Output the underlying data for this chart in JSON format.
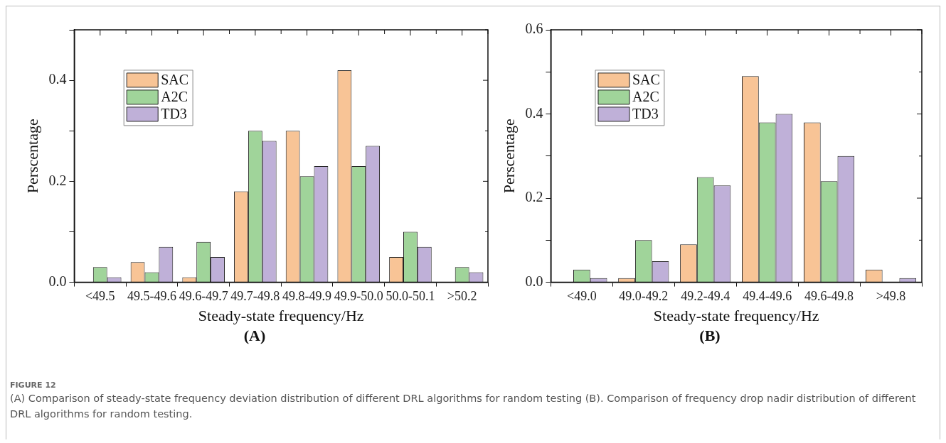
{
  "chart_data": [
    {
      "type": "bar",
      "title": "(A)",
      "xlabel": "Steady-state frequency/Hz",
      "ylabel": "Perscentage",
      "categories": [
        "<49.5",
        "49.5-49.6",
        "49.6-49.7",
        "49.7-49.8",
        "49.8-49.9",
        "49.9-50.0",
        "50.0-50.1",
        ">50.2"
      ],
      "series": [
        {
          "name": "SAC",
          "color": "#f8c496",
          "values": [
            0,
            0.04,
            0.01,
            0.18,
            0.3,
            0.42,
            0.05,
            0
          ]
        },
        {
          "name": "A2C",
          "color": "#a0d49a",
          "values": [
            0.03,
            0.02,
            0.08,
            0.3,
            0.21,
            0.23,
            0.1,
            0.03
          ]
        },
        {
          "name": "TD3",
          "color": "#bfb0d8",
          "values": [
            0.01,
            0.07,
            0.05,
            0.28,
            0.23,
            0.27,
            0.07,
            0.02
          ]
        }
      ],
      "ylim": [
        0,
        0.5
      ],
      "yticks": [
        {
          "value": 0,
          "label": "0.0"
        },
        {
          "value": 0.1,
          "label": null
        },
        {
          "value": 0.2,
          "label": "0.2"
        },
        {
          "value": 0.3,
          "label": null
        },
        {
          "value": 0.4,
          "label": "0.4"
        },
        {
          "value": 0.5,
          "label": null
        }
      ],
      "grid": false,
      "legend": "top left",
      "annotations": [
        "FIGURE 12",
        "(A) Comparison of steady-state frequency deviation distribution of different DRL algorithms for random testing (B). Comparison of frequency drop nadir distribution of different DRL algorithms for random testing."
      ]
    },
    {
      "type": "bar",
      "title": "(B)",
      "xlabel": "Steady-state frequency/Hz",
      "ylabel": "Perscentage",
      "categories": [
        "<49.0",
        "49.0-49.2",
        "49.2-49.4",
        "49.4-49.6",
        "49.6-49.8",
        ">49.8"
      ],
      "series": [
        {
          "name": "SAC",
          "color": "#f8c496",
          "values": [
            0,
            0.01,
            0.09,
            0.49,
            0.38,
            0.03
          ]
        },
        {
          "name": "A2C",
          "color": "#a0d49a",
          "values": [
            0.03,
            0.1,
            0.25,
            0.38,
            0.24,
            0
          ]
        },
        {
          "name": "TD3",
          "color": "#bfb0d8",
          "values": [
            0.01,
            0.05,
            0.23,
            0.4,
            0.3,
            0.01
          ]
        }
      ],
      "ylim": [
        0,
        0.6
      ],
      "yticks": [
        {
          "value": 0,
          "label": "0.0"
        },
        {
          "value": 0.1,
          "label": null
        },
        {
          "value": 0.2,
          "label": "0.2"
        },
        {
          "value": 0.3,
          "label": null
        },
        {
          "value": 0.4,
          "label": "0.4"
        },
        {
          "value": 0.5,
          "label": null
        },
        {
          "value": 0.6,
          "label": "0.6"
        }
      ],
      "grid": false,
      "legend": "top left"
    }
  ]
}
